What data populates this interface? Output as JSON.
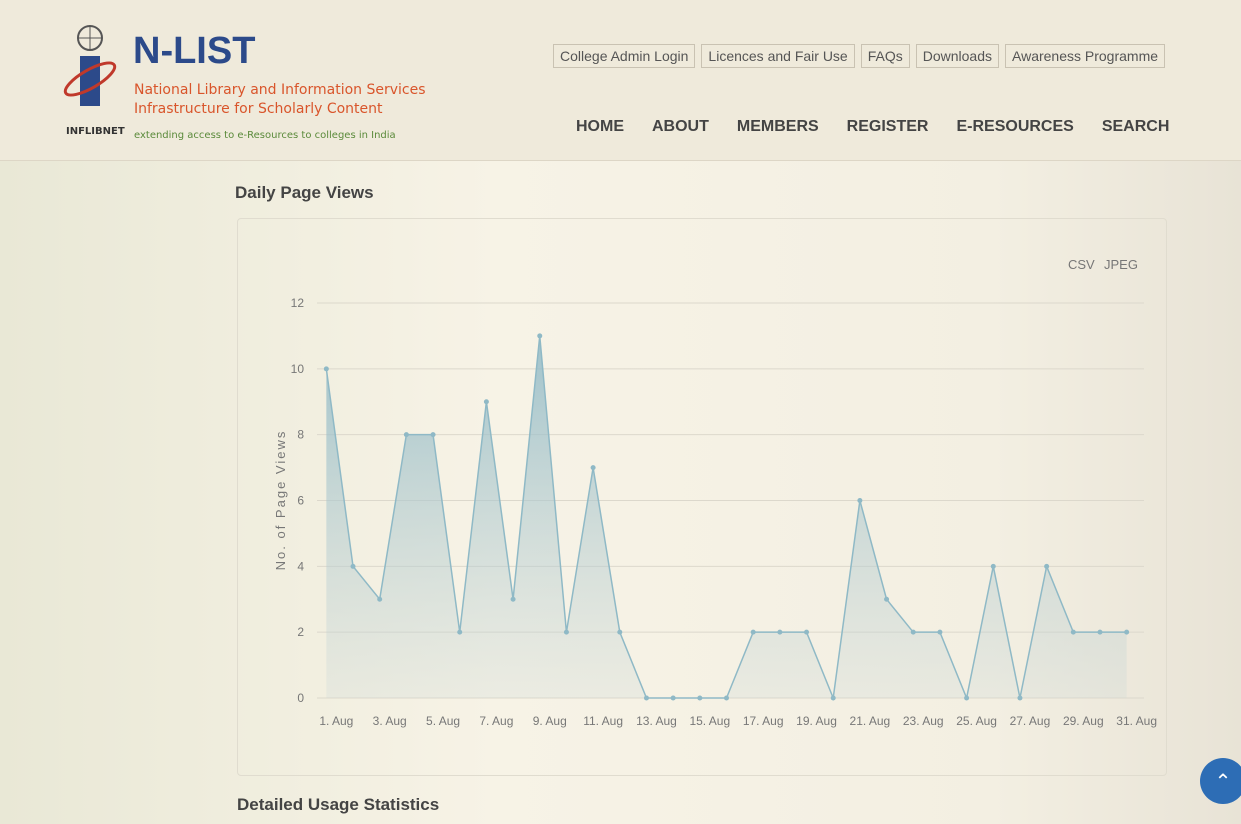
{
  "header": {
    "org": "INFLIBNET",
    "title": "N-LIST",
    "subtitle_1": "National Library and Information Services",
    "subtitle_2": "Infrastructure for Scholarly Content",
    "tagline": "extending access to e-Resources to colleges in India",
    "top_links": [
      "College Admin Login",
      "Licences and Fair Use",
      "FAQs",
      "Downloads",
      "Awareness Programme"
    ],
    "nav": [
      "HOME",
      "ABOUT",
      "MEMBERS",
      "REGISTER",
      "E-RESOURCES",
      "SEARCH"
    ]
  },
  "section_title": "Daily Page Views",
  "export_links": [
    "CSV",
    "JPEG"
  ],
  "next_section_title": "Detailed Usage Statistics",
  "chart_data": {
    "type": "area",
    "y_label": "No. of Page Views",
    "categories": [
      "1. Aug",
      null,
      "3. Aug",
      null,
      "5. Aug",
      null,
      "7. Aug",
      null,
      "9. Aug",
      null,
      "11. Aug",
      null,
      "13. Aug",
      null,
      "15. Aug",
      null,
      "17. Aug",
      null,
      "19. Aug",
      null,
      "21. Aug",
      null,
      "23. Aug",
      null,
      "25. Aug",
      null,
      "27. Aug",
      null,
      "29. Aug",
      null,
      "31. Aug"
    ],
    "values": [
      10,
      4,
      3,
      8,
      8,
      2,
      9,
      3,
      11,
      2,
      7,
      2,
      0,
      0,
      0,
      0,
      2,
      2,
      2,
      0,
      6,
      3,
      2,
      2,
      0,
      4,
      0,
      4,
      2,
      2,
      2
    ],
    "color": "#8fb9c6",
    "ylim": [
      0,
      12
    ],
    "yticks": [
      0,
      2,
      4,
      6,
      8,
      10,
      12
    ],
    "grid": true
  }
}
